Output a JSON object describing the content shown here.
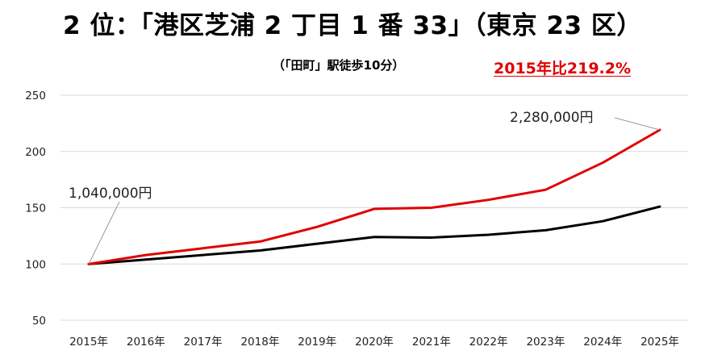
{
  "header": {
    "title": "2 位：「港区芝浦 2 丁目 1 番 33」（東京 23 区）",
    "subtitle": "（「田町」駅徒歩10分）",
    "highlight": "2015年比219.2%"
  },
  "colors": {
    "red_series": "#e00000",
    "black_series": "#000000",
    "grid": "#d9d9d9"
  },
  "chart_data": {
    "type": "line",
    "title": "",
    "xlabel": "",
    "ylabel": "",
    "ylim": [
      50,
      250
    ],
    "yticks": [
      "50",
      "100",
      "150",
      "200",
      "250"
    ],
    "categories": [
      "2015年",
      "2016年",
      "2017年",
      "2018年",
      "2019年",
      "2020年",
      "2021年",
      "2022年",
      "2023年",
      "2024年",
      "2025年"
    ],
    "grid": true,
    "legend": "none",
    "series": [
      {
        "color": "#e00000",
        "values": [
          100,
          108,
          114,
          120,
          133,
          149,
          150,
          157,
          166,
          190,
          219.2
        ]
      },
      {
        "color": "#000000",
        "values": [
          100,
          104,
          108,
          112,
          118,
          124,
          123.5,
          126,
          130,
          138,
          151
        ]
      }
    ],
    "annotations": [
      {
        "text": "1,040,000円",
        "x": "2015年",
        "y": 100
      },
      {
        "text": "2,280,000円",
        "x": "2025年",
        "y": 219.2
      }
    ]
  }
}
